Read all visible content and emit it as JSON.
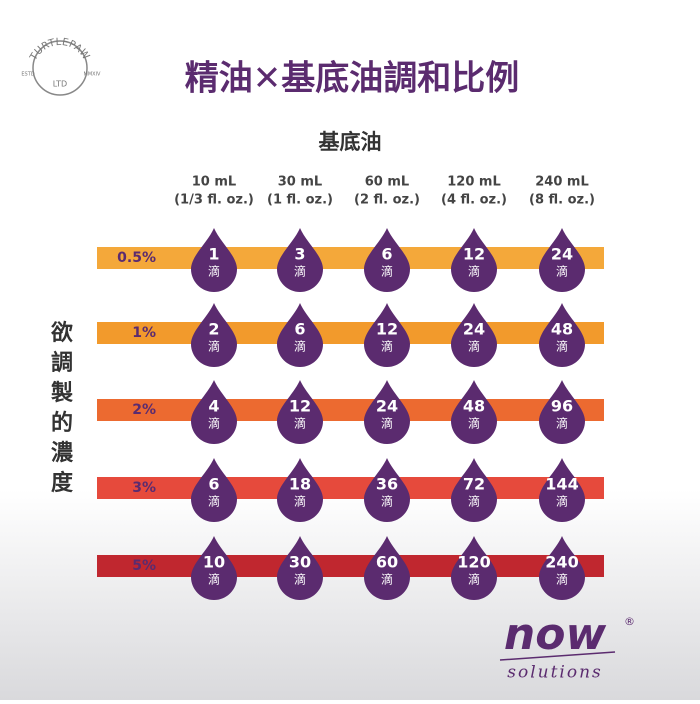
{
  "logo": {
    "name": "TURTLEPAW",
    "suffix": "LTD",
    "left": "ESTD",
    "right": "MMXIV"
  },
  "title": "精油✕基底油調和比例",
  "column_header": "基底油",
  "row_header": "欲調製的濃度",
  "columns": [
    {
      "volume": "10 mL",
      "ounces": "(1/3 fl. oz.)"
    },
    {
      "volume": "30 mL",
      "ounces": "(1 fl. oz.)"
    },
    {
      "volume": "60 mL",
      "ounces": "(2 fl. oz.)"
    },
    {
      "volume": "120 mL",
      "ounces": "(4 fl. oz.)"
    },
    {
      "volume": "240 mL",
      "ounces": "(8 fl. oz.)"
    }
  ],
  "unit": "滴",
  "rows": [
    {
      "label": "0.5%",
      "drops": [
        1,
        3,
        6,
        12,
        24
      ]
    },
    {
      "label": "1%",
      "drops": [
        2,
        6,
        12,
        24,
        48
      ]
    },
    {
      "label": "2%",
      "drops": [
        4,
        12,
        24,
        48,
        96
      ]
    },
    {
      "label": "3%",
      "drops": [
        6,
        18,
        36,
        72,
        144
      ]
    },
    {
      "label": "5%",
      "drops": [
        10,
        30,
        60,
        120,
        240
      ]
    }
  ],
  "brand": {
    "name": "now",
    "mark": "®",
    "line": "solutions"
  }
}
